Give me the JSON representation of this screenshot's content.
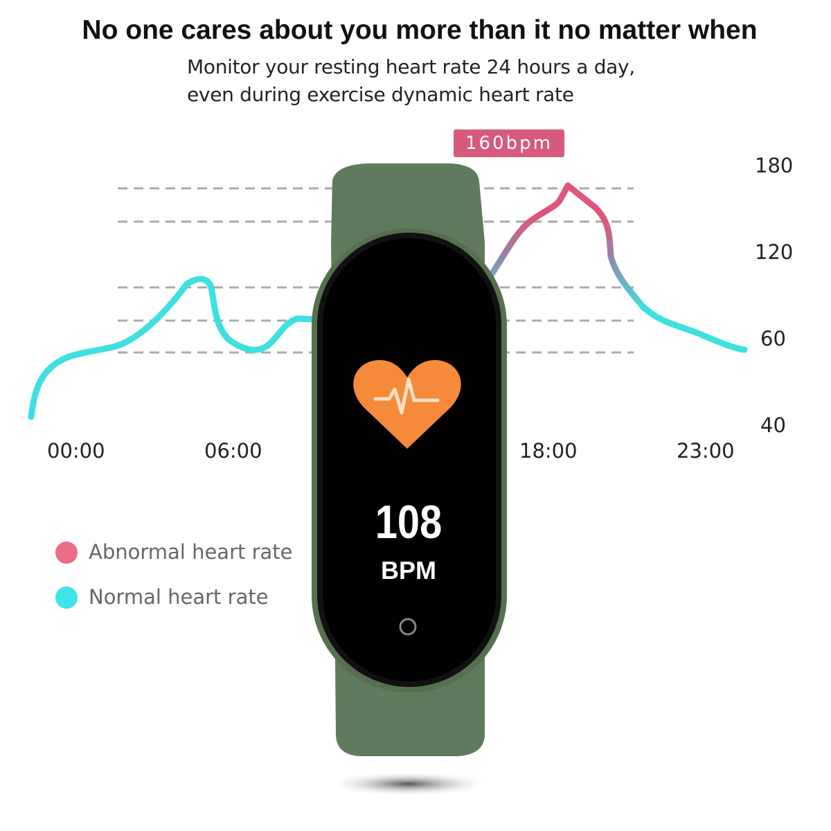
{
  "header": {
    "title": "No one cares about you more than it no matter when",
    "subtitle_lines": [
      "Monitor your resting heart rate 24 hours a day,",
      "even during exercise dynamic heart rate"
    ]
  },
  "graph": {
    "peak_badge": "160bpm",
    "y_ticks": [
      "180",
      "120",
      "60",
      "40"
    ],
    "x_ticks": [
      "00:00",
      "06:00",
      "18:00",
      "23:00"
    ],
    "colors": {
      "normal": "#3fe0e0",
      "abnormal": "#e2557a",
      "grid": "#aaaaaa"
    }
  },
  "legend": {
    "items": [
      {
        "label": "Abnormal heart rate",
        "color": "#ec6c87"
      },
      {
        "label": "Normal heart rate",
        "color": "#3fe3ea"
      }
    ]
  },
  "device": {
    "band_color": "#5f7a5c",
    "screen_icon": "heart-pulse-icon",
    "value": "108",
    "unit": "BPM",
    "button_icon": "circle-button-icon"
  }
}
